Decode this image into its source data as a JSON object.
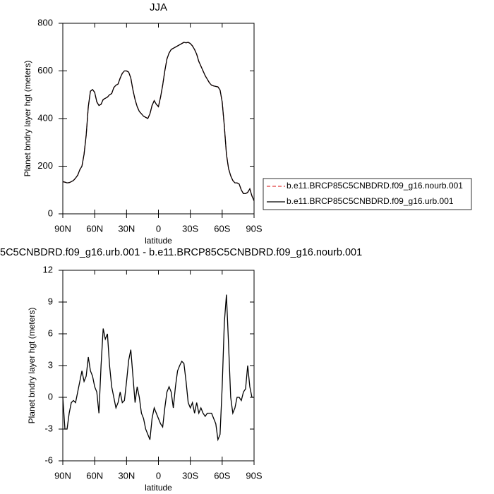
{
  "chart_data": [
    {
      "type": "line",
      "title": "JJA",
      "xlabel": "latitude",
      "ylabel": "Planet bndry layer hgt (meters)",
      "x": [
        90,
        88,
        86,
        84,
        82,
        80,
        78,
        76,
        74,
        72,
        70,
        68,
        66,
        64,
        62,
        60,
        58,
        56,
        54,
        52,
        50,
        48,
        46,
        44,
        42,
        40,
        38,
        36,
        34,
        32,
        30,
        28,
        26,
        24,
        22,
        20,
        18,
        16,
        14,
        12,
        10,
        8,
        6,
        4,
        2,
        0,
        -2,
        -4,
        -6,
        -8,
        -10,
        -12,
        -14,
        -16,
        -18,
        -20,
        -22,
        -24,
        -26,
        -28,
        -30,
        -32,
        -34,
        -36,
        -38,
        -40,
        -42,
        -44,
        -46,
        -48,
        -50,
        -52,
        -54,
        -56,
        -58,
        -60,
        -62,
        -64,
        -66,
        -68,
        -70,
        -72,
        -74,
        -76,
        -78,
        -80,
        -82,
        -84,
        -86,
        -88,
        -90
      ],
      "series": [
        {
          "name": "b.e11.BRCP85C5CNBDRD.f09_g16.nourb.001",
          "color": "#e03c3c",
          "line_style": "dashed",
          "values": [
            135,
            133,
            130,
            131,
            135,
            140,
            150,
            162,
            185,
            200,
            250,
            330,
            450,
            515,
            522,
            510,
            470,
            455,
            460,
            480,
            485,
            490,
            500,
            505,
            530,
            540,
            545,
            570,
            590,
            600,
            600,
            595,
            570,
            520,
            480,
            450,
            430,
            420,
            410,
            405,
            400,
            420,
            455,
            475,
            460,
            450,
            490,
            540,
            600,
            650,
            675,
            690,
            695,
            700,
            705,
            710,
            715,
            720,
            718,
            720,
            715,
            705,
            690,
            670,
            640,
            620,
            600,
            580,
            565,
            550,
            540,
            537,
            535,
            533,
            520,
            470,
            370,
            250,
            190,
            160,
            140,
            130,
            130,
            125,
            100,
            85,
            85,
            90,
            105,
            75,
            55
          ]
        },
        {
          "name": "b.e11.BRCP85C5CNBDRD.f09_g16.urb.001",
          "color": "#000000",
          "line_style": "solid",
          "values": [
            135,
            133,
            130,
            131,
            135,
            140,
            150,
            162,
            185,
            200,
            250,
            330,
            450,
            515,
            522,
            510,
            470,
            455,
            460,
            480,
            485,
            490,
            500,
            505,
            530,
            540,
            545,
            570,
            590,
            600,
            600,
            595,
            570,
            520,
            480,
            450,
            430,
            420,
            410,
            405,
            400,
            420,
            455,
            475,
            460,
            450,
            490,
            540,
            600,
            650,
            675,
            690,
            695,
            700,
            705,
            710,
            715,
            720,
            718,
            720,
            715,
            705,
            690,
            670,
            640,
            620,
            600,
            580,
            565,
            550,
            540,
            537,
            535,
            533,
            520,
            470,
            370,
            250,
            190,
            160,
            140,
            130,
            130,
            125,
            100,
            85,
            85,
            90,
            105,
            75,
            55
          ]
        }
      ],
      "xlim": [
        90,
        -90
      ],
      "xticks": [
        {
          "value": 90,
          "label": "90N"
        },
        {
          "value": 60,
          "label": "60N"
        },
        {
          "value": 30,
          "label": "30N"
        },
        0,
        {
          "value": -30,
          "label": "30S"
        },
        {
          "value": -60,
          "label": "60S"
        },
        {
          "value": -90,
          "label": "90S"
        }
      ],
      "ylim": [
        0,
        800
      ],
      "yticks": [
        0,
        200,
        400,
        600,
        800
      ],
      "legend": "right"
    },
    {
      "type": "line",
      "title": "5C5CNBDRD.f09_g16.urb.001 - b.e11.BRCP85C5CNBDRD.f09_g16.nourb.001",
      "xlabel": "latitude",
      "ylabel": "Planet bndry layer hgt (meters)",
      "x": [
        90,
        88,
        86,
        84,
        82,
        80,
        78,
        76,
        74,
        72,
        70,
        68,
        66,
        64,
        62,
        60,
        58,
        56,
        54,
        52,
        50,
        48,
        46,
        44,
        42,
        40,
        38,
        36,
        34,
        32,
        30,
        28,
        26,
        24,
        22,
        20,
        18,
        16,
        14,
        12,
        10,
        8,
        6,
        4,
        2,
        0,
        -2,
        -4,
        -6,
        -8,
        -10,
        -12,
        -14,
        -16,
        -18,
        -20,
        -22,
        -24,
        -26,
        -28,
        -30,
        -32,
        -34,
        -36,
        -38,
        -40,
        -42,
        -44,
        -46,
        -48,
        -50,
        -52,
        -54,
        -56,
        -58,
        -60,
        -62,
        -64,
        -66,
        -68,
        -70,
        -72,
        -74,
        -76,
        -78,
        -80,
        -82,
        -84,
        -86,
        -88,
        -90
      ],
      "series": [
        {
          "color": "#000000",
          "line_style": "solid",
          "values": [
            0,
            -3,
            -3,
            -1.5,
            -0.5,
            -0.3,
            -0.5,
            0.5,
            1.5,
            2.5,
            1.5,
            2,
            3.8,
            2.5,
            2,
            1,
            0.5,
            -1.5,
            3,
            6.5,
            5.5,
            6,
            3,
            1,
            0,
            -1,
            -0.5,
            0.5,
            -0.5,
            -0.3,
            1.5,
            3.5,
            4.5,
            2,
            -0.5,
            1,
            0,
            -1.5,
            -2,
            -3,
            -3.5,
            -4,
            -2,
            -1,
            -1.5,
            -2,
            -2.5,
            -2.8,
            -1,
            0.5,
            1,
            0.5,
            -1,
            1,
            2.5,
            3,
            3.4,
            3.2,
            1.5,
            -0.5,
            -1,
            -0.5,
            -1.5,
            -0.5,
            -1.5,
            -1,
            -1.5,
            -1.8,
            -1.5,
            -1.5,
            -1.5,
            -2,
            -2.5,
            -4,
            -3.5,
            1,
            7,
            9.7,
            5,
            0,
            -1.5,
            -1,
            0,
            0,
            -0.3,
            0.5,
            0.8,
            3,
            1,
            0,
            0
          ]
        }
      ],
      "xlim": [
        90,
        -90
      ],
      "xticks": [
        {
          "value": 90,
          "label": "90N"
        },
        {
          "value": 60,
          "label": "60N"
        },
        {
          "value": 30,
          "label": "30N"
        },
        0,
        {
          "value": -30,
          "label": "30S"
        },
        {
          "value": -60,
          "label": "60S"
        },
        {
          "value": -90,
          "label": "90S"
        }
      ],
      "ylim": [
        -6,
        12
      ],
      "yticks": [
        -6,
        -3,
        0,
        3,
        6,
        9,
        12
      ]
    }
  ]
}
